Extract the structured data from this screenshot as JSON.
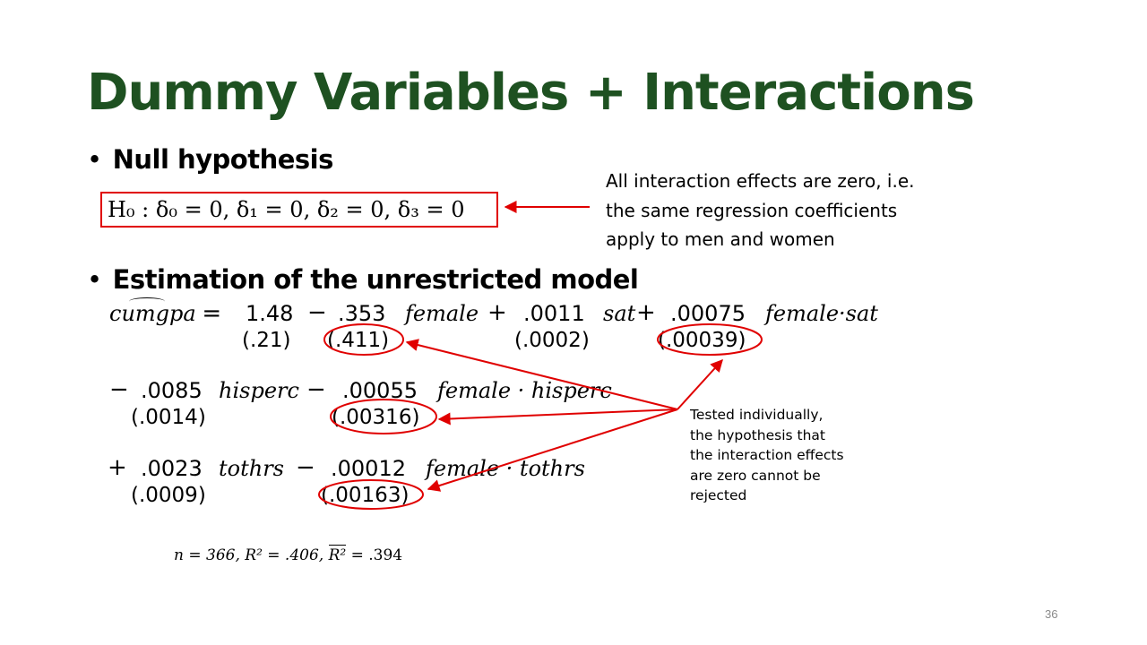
{
  "slide": {
    "title": "Dummy Variables + Interactions",
    "page_number": "36"
  },
  "bullets": {
    "null_hypothesis": "Null hypothesis",
    "estimation": "Estimation of the unrestricted model"
  },
  "h0": {
    "equation": "H₀ : δ₀ = 0, δ₁ = 0, δ₂ = 0, δ₃ = 0"
  },
  "callouts": {
    "interaction_note_lines": [
      "All interaction effects are zero, i.e.",
      "the same regression coefficients",
      "apply to men and women"
    ],
    "tested_note_lines": [
      "Tested individually,",
      "the hypothesis that",
      "the interaction effects",
      "are zero cannot be",
      "rejected"
    ]
  },
  "model": {
    "dependent": "cumgpa",
    "line1": {
      "intercept": "1.48",
      "c_female": ".353",
      "v_female": "female",
      "c_sat": ".0011",
      "v_sat": "sat",
      "c_female_sat": ".00075",
      "v_female_sat": "female·sat",
      "se_intercept": "(.21)",
      "se_female": "(.411)",
      "se_sat": "(.0002)",
      "se_female_sat": "(.00039)"
    },
    "line2": {
      "c_hisperc": ".0085",
      "v_hisperc": "hisperc",
      "c_female_hisperc": ".00055",
      "v_female_hisperc": "female · hisperc",
      "se_hisperc": "(.0014)",
      "se_female_hisperc": "(.00316)"
    },
    "line3": {
      "c_tothrs": ".0023",
      "v_tothrs": "tothrs",
      "c_female_tothrs": ".00012",
      "v_female_tothrs": "female · tothrs",
      "se_tothrs": "(.0009)",
      "se_female_tothrs": "(.00163)"
    },
    "stats": {
      "n": "n = 366,",
      "r2": "R² = .406,",
      "r2_bar_label": "R²",
      "r2_bar_value": " = .394"
    }
  },
  "colors": {
    "title": "#1e5121",
    "annotation": "#e00000"
  }
}
